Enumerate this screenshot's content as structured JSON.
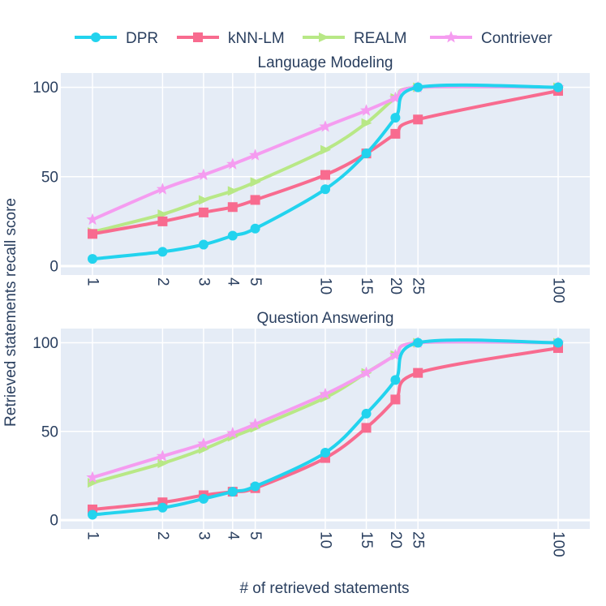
{
  "figure": {
    "ylabel": "Retrieved statements recall score",
    "xlabel": "# of retrieved statements"
  },
  "legend": {
    "entries": [
      {
        "name": "DPR",
        "color": "#22d3ee",
        "marker": "circle"
      },
      {
        "name": "kNN-LM",
        "color": "#f86b8f",
        "marker": "square"
      },
      {
        "name": "REALM",
        "color": "#b8e886",
        "marker": "triangle-right"
      },
      {
        "name": "Contriever",
        "color": "#f59cf0",
        "marker": "star"
      }
    ]
  },
  "chart_data": [
    {
      "type": "line",
      "title": "Language Modeling",
      "x": [
        1,
        2,
        3,
        4,
        5,
        10,
        15,
        20,
        25,
        100
      ],
      "xticks": [
        "1",
        "2",
        "3",
        "4",
        "5",
        "10",
        "15",
        "20",
        "25",
        "100"
      ],
      "xscale": "log",
      "yticks": [
        "0",
        "50",
        "100"
      ],
      "ylim": [
        -5,
        108
      ],
      "series": [
        {
          "name": "DPR",
          "values": [
            4,
            8,
            12,
            17,
            21,
            43,
            63,
            83,
            100,
            100
          ]
        },
        {
          "name": "kNN-LM",
          "values": [
            18,
            25,
            30,
            33,
            37,
            51,
            63,
            74,
            82,
            98
          ]
        },
        {
          "name": "REALM",
          "values": [
            19,
            29,
            37,
            42,
            47,
            65,
            80,
            94,
            100,
            100
          ]
        },
        {
          "name": "Contriever",
          "values": [
            26,
            43,
            51,
            57,
            62,
            78,
            87,
            94,
            100,
            100
          ]
        }
      ]
    },
    {
      "type": "line",
      "title": "Question Answering",
      "x": [
        1,
        2,
        3,
        4,
        5,
        10,
        15,
        20,
        25,
        100
      ],
      "xticks": [
        "1",
        "2",
        "3",
        "4",
        "5",
        "10",
        "15",
        "20",
        "25",
        "100"
      ],
      "xscale": "log",
      "yticks": [
        "0",
        "50",
        "100"
      ],
      "ylim": [
        -5,
        108
      ],
      "series": [
        {
          "name": "DPR",
          "values": [
            3,
            7,
            12,
            16,
            19,
            38,
            60,
            79,
            100,
            100
          ]
        },
        {
          "name": "kNN-LM",
          "values": [
            6,
            10,
            14,
            16,
            18,
            35,
            52,
            68,
            83,
            97
          ]
        },
        {
          "name": "REALM",
          "values": [
            21,
            32,
            40,
            47,
            52,
            69,
            83,
            93,
            100,
            100
          ]
        },
        {
          "name": "Contriever",
          "values": [
            24,
            36,
            43,
            49,
            54,
            71,
            83,
            93,
            100,
            100
          ]
        }
      ]
    }
  ]
}
